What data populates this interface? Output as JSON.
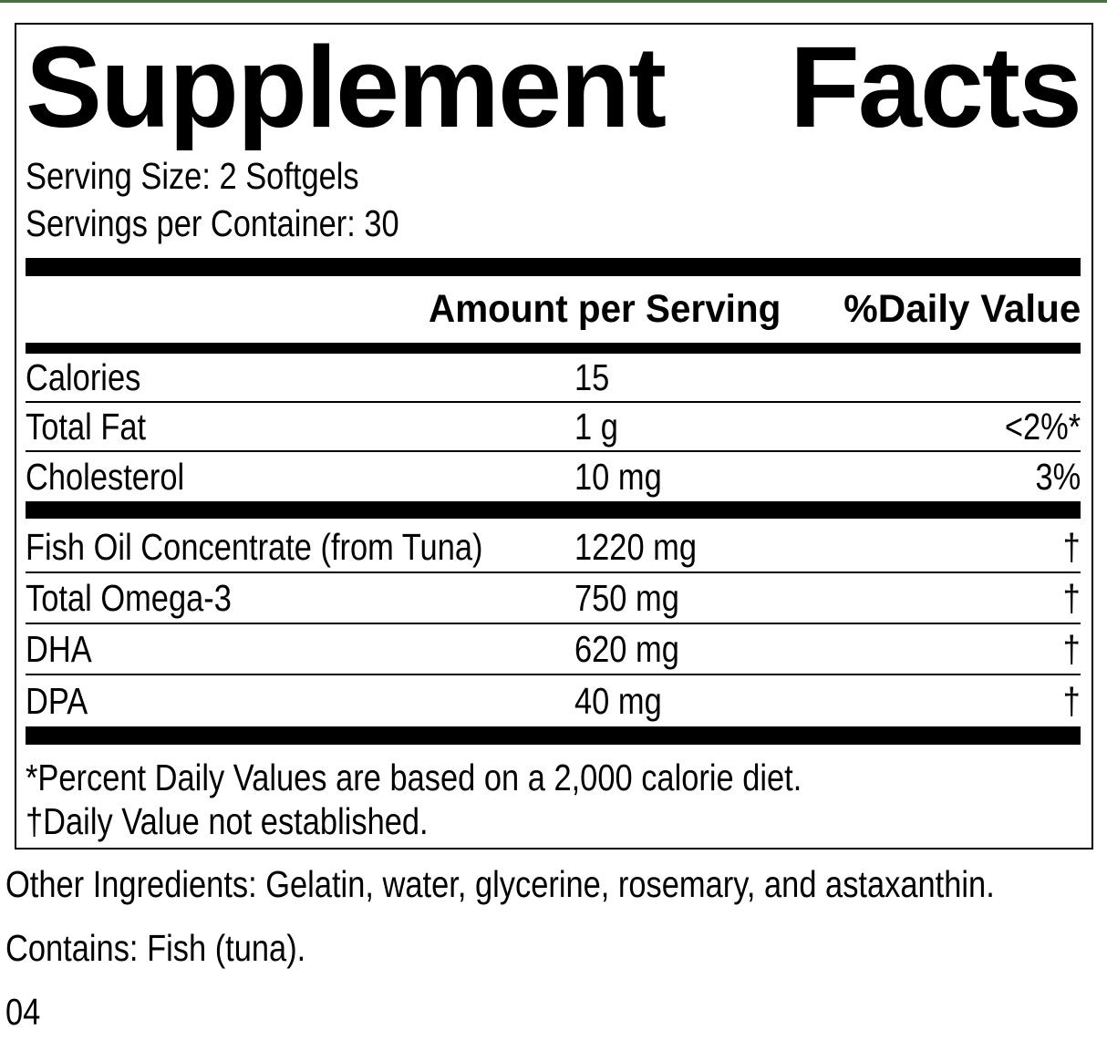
{
  "label": {
    "accent_green": "#4a6d45",
    "title_left": "Supplement",
    "title_right": "Facts",
    "serving_size": "Serving Size: 2 Softgels",
    "servings_per_container": "Servings per Container: 30",
    "columns": {
      "amount_header": "Amount per Serving",
      "daily_value_header": "%Daily Value"
    },
    "rows_primary": [
      {
        "name": "Calories",
        "amount": "15",
        "dv": ""
      },
      {
        "name": "Total Fat",
        "amount": "1 g",
        "dv": "<2%*"
      },
      {
        "name": "Cholesterol",
        "amount": "10 mg",
        "dv": "3%"
      }
    ],
    "rows_secondary": [
      {
        "name": "Fish Oil Concentrate (from Tuna)",
        "amount": "1220 mg",
        "dv": "†"
      },
      {
        "name": "Total Omega-3",
        "amount": "750 mg",
        "dv": "†"
      },
      {
        "name": "DHA",
        "amount": "620 mg",
        "dv": "†"
      },
      {
        "name": "DPA",
        "amount": "40 mg",
        "dv": "†"
      }
    ],
    "footnotes": [
      "*Percent Daily Values are based on a 2,000 calorie diet.",
      "†Daily Value not established."
    ],
    "other_ingredients": "Other Ingredients: Gelatin, water, glycerine, rosemary, and astaxanthin.",
    "contains": "Contains: Fish (tuna).",
    "code": "04"
  }
}
